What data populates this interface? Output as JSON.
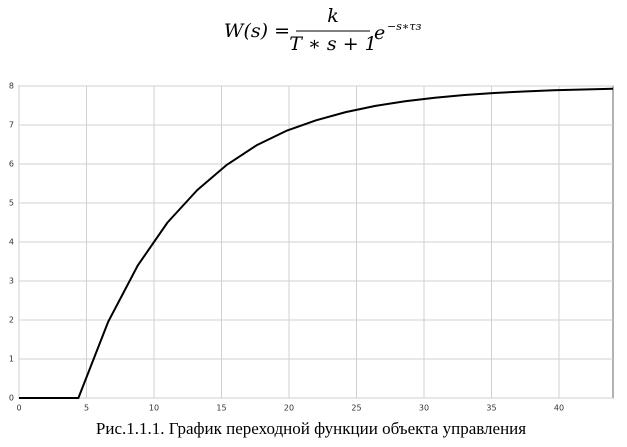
{
  "chart_data": {
    "type": "line",
    "formula": {
      "lhs": "W(s) =",
      "numerator": "k",
      "denominator": "T ∗ s + 1",
      "base": "e",
      "exponent": "−s∗τз"
    },
    "caption": "Рис.1.1.1. График переходной функции объекта управления",
    "x": [
      0,
      4.4,
      6.6,
      8.8,
      11,
      13.2,
      15.4,
      17.6,
      19.8,
      22,
      24.2,
      26.4,
      28.6,
      30.8,
      33,
      35.2,
      37.4,
      39.6,
      41.8,
      44
    ],
    "series": [
      {
        "color": "#000000",
        "values": [
          0,
          0,
          1.95,
          3.4,
          4.5,
          5.33,
          5.98,
          6.48,
          6.85,
          7.12,
          7.33,
          7.49,
          7.61,
          7.7,
          7.77,
          7.82,
          7.86,
          7.89,
          7.91,
          7.93
        ]
      }
    ],
    "xlim": [
      0,
      44
    ],
    "ylim": [
      0,
      8
    ],
    "xticks": [
      0,
      5,
      10,
      15,
      20,
      25,
      30,
      35,
      40
    ],
    "yticks": [
      0,
      1,
      2,
      3,
      4,
      5,
      6,
      7,
      8
    ],
    "grid": true
  }
}
